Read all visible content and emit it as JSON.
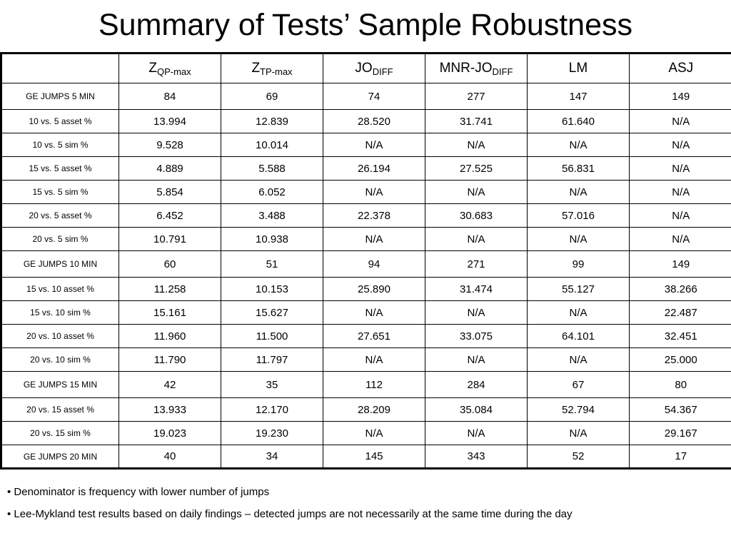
{
  "title": "Summary of Tests’ Sample Robustness",
  "table": {
    "columns": [
      {
        "base": "",
        "sub": ""
      },
      {
        "base": "Z",
        "sub": "QP-max"
      },
      {
        "base": "Z",
        "sub": "TP-max"
      },
      {
        "base": "JO",
        "sub": "DIFF"
      },
      {
        "base": "MNR-JO",
        "sub": "DIFF"
      },
      {
        "base": "LM",
        "sub": ""
      },
      {
        "base": "ASJ",
        "sub": ""
      }
    ],
    "rows": [
      {
        "label": "GE JUMPS 5 MIN",
        "values": [
          "84",
          "69",
          "74",
          "277",
          "147",
          "149"
        ]
      },
      {
        "label": "10 vs. 5 asset %",
        "values": [
          "13.994",
          "12.839",
          "28.520",
          "31.741",
          "61.640",
          "N/A"
        ]
      },
      {
        "label": "10 vs. 5 sim %",
        "values": [
          "9.528",
          "10.014",
          "N/A",
          "N/A",
          "N/A",
          "N/A"
        ]
      },
      {
        "label": "15 vs. 5 asset %",
        "values": [
          "4.889",
          "5.588",
          "26.194",
          "27.525",
          "56.831",
          "N/A"
        ]
      },
      {
        "label": "15 vs. 5 sim %",
        "values": [
          "5.854",
          "6.052",
          "N/A",
          "N/A",
          "N/A",
          "N/A"
        ]
      },
      {
        "label": "20 vs. 5 asset %",
        "values": [
          "6.452",
          "3.488",
          "22.378",
          "30.683",
          "57.016",
          "N/A"
        ]
      },
      {
        "label": "20 vs. 5 sim %",
        "values": [
          "10.791",
          "10.938",
          "N/A",
          "N/A",
          "N/A",
          "N/A"
        ]
      },
      {
        "label": "GE JUMPS 10 MIN",
        "values": [
          "60",
          "51",
          "94",
          "271",
          "99",
          "149"
        ]
      },
      {
        "label": "15 vs. 10 asset %",
        "values": [
          "11.258",
          "10.153",
          "25.890",
          "31.474",
          "55.127",
          "38.266"
        ]
      },
      {
        "label": "15 vs. 10 sim %",
        "values": [
          "15.161",
          "15.627",
          "N/A",
          "N/A",
          "N/A",
          "22.487"
        ]
      },
      {
        "label": "20 vs. 10 asset %",
        "values": [
          "11.960",
          "11.500",
          "27.651",
          "33.075",
          "64.101",
          "32.451"
        ]
      },
      {
        "label": "20 vs. 10 sim %",
        "values": [
          "11.790",
          "11.797",
          "N/A",
          "N/A",
          "N/A",
          "25.000"
        ]
      },
      {
        "label": "GE JUMPS 15 MIN",
        "values": [
          "42",
          "35",
          "112",
          "284",
          "67",
          "80"
        ]
      },
      {
        "label": "20 vs. 15 asset %",
        "values": [
          "13.933",
          "12.170",
          "28.209",
          "35.084",
          "52.794",
          "54.367"
        ]
      },
      {
        "label": "20 vs. 15 sim %",
        "values": [
          "19.023",
          "19.230",
          "N/A",
          "N/A",
          "N/A",
          "29.167"
        ]
      },
      {
        "label": "GE JUMPS 20 MIN",
        "values": [
          "40",
          "34",
          "145",
          "343",
          "52",
          "17"
        ]
      }
    ]
  },
  "notes": [
    "• Denominator is frequency with lower number of jumps",
    "• Lee-Mykland test results based on daily findings – detected jumps are not necessarily at the same time during the day"
  ]
}
